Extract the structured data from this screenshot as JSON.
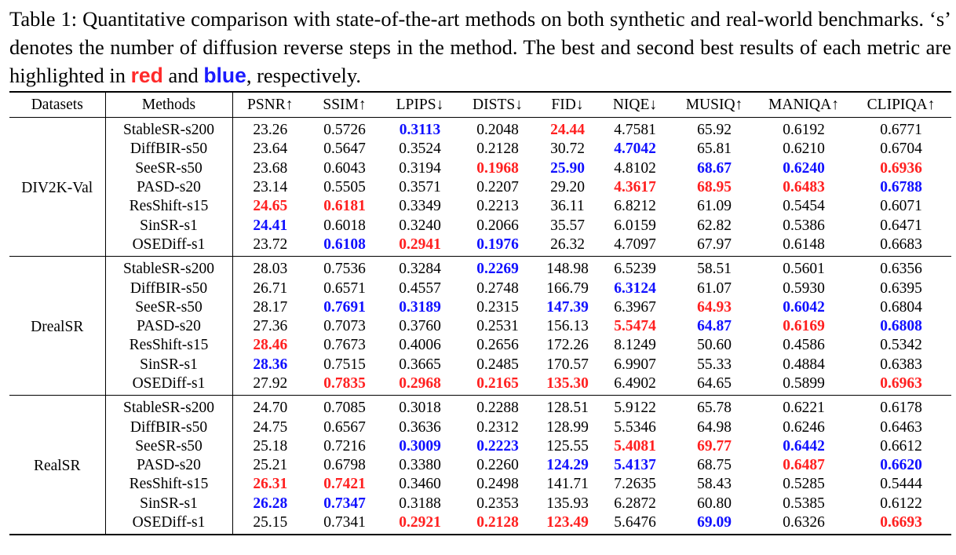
{
  "caption": {
    "prefix": "Table 1: Quantitative comparison with state-of-the-art methods on both synthetic and real-world benchmarks. ‘s’ denotes the number of diffusion reverse steps in the method. The best and second best results of each metric are highlighted in ",
    "red_word": "red",
    "middle": " and ",
    "blue_word": "blue",
    "suffix": ", respectively."
  },
  "colors": {
    "best": "#ff2020",
    "second": "#1010ff"
  },
  "table": {
    "headers": [
      "Datasets",
      "Methods",
      "PSNR↑",
      "SSIM↑",
      "LPIPS↓",
      "DISTS↓",
      "FID↓",
      "NIQE↓",
      "MUSIQ↑",
      "MANIQA↑",
      "CLIPIQA↑"
    ],
    "groups": [
      {
        "dataset": "DIV2K-Val",
        "rows": [
          {
            "method": "StableSR-s200",
            "values": [
              "23.26",
              "0.5726",
              "0.3113",
              "0.2048",
              "24.44",
              "4.7581",
              "65.92",
              "0.6192",
              "0.6771"
            ],
            "marks": [
              "",
              "",
              "second",
              "",
              "best",
              "",
              "",
              "",
              ""
            ]
          },
          {
            "method": "DiffBIR-s50",
            "values": [
              "23.64",
              "0.5647",
              "0.3524",
              "0.2128",
              "30.72",
              "4.7042",
              "65.81",
              "0.6210",
              "0.6704"
            ],
            "marks": [
              "",
              "",
              "",
              "",
              "",
              "second",
              "",
              "",
              ""
            ]
          },
          {
            "method": "SeeSR-s50",
            "values": [
              "23.68",
              "0.6043",
              "0.3194",
              "0.1968",
              "25.90",
              "4.8102",
              "68.67",
              "0.6240",
              "0.6936"
            ],
            "marks": [
              "",
              "",
              "",
              "best",
              "second",
              "",
              "second",
              "second",
              "best"
            ]
          },
          {
            "method": "PASD-s20",
            "values": [
              "23.14",
              "0.5505",
              "0.3571",
              "0.2207",
              "29.20",
              "4.3617",
              "68.95",
              "0.6483",
              "0.6788"
            ],
            "marks": [
              "",
              "",
              "",
              "",
              "",
              "best",
              "best",
              "best",
              "second"
            ]
          },
          {
            "method": "ResShift-s15",
            "values": [
              "24.65",
              "0.6181",
              "0.3349",
              "0.2213",
              "36.11",
              "6.8212",
              "61.09",
              "0.5454",
              "0.6071"
            ],
            "marks": [
              "best",
              "best",
              "",
              "",
              "",
              "",
              "",
              "",
              ""
            ]
          },
          {
            "method": "SinSR-s1",
            "values": [
              "24.41",
              "0.6018",
              "0.3240",
              "0.2066",
              "35.57",
              "6.0159",
              "62.82",
              "0.5386",
              "0.6471"
            ],
            "marks": [
              "second",
              "",
              "",
              "",
              "",
              "",
              "",
              "",
              ""
            ]
          },
          {
            "method": "OSEDiff-s1",
            "values": [
              "23.72",
              "0.6108",
              "0.2941",
              "0.1976",
              "26.32",
              "4.7097",
              "67.97",
              "0.6148",
              "0.6683"
            ],
            "marks": [
              "",
              "second",
              "best",
              "second",
              "",
              "",
              "",
              "",
              ""
            ]
          }
        ]
      },
      {
        "dataset": "DrealSR",
        "rows": [
          {
            "method": "StableSR-s200",
            "values": [
              "28.03",
              "0.7536",
              "0.3284",
              "0.2269",
              "148.98",
              "6.5239",
              "58.51",
              "0.5601",
              "0.6356"
            ],
            "marks": [
              "",
              "",
              "",
              "second",
              "",
              "",
              "",
              "",
              ""
            ]
          },
          {
            "method": "DiffBIR-s50",
            "values": [
              "26.71",
              "0.6571",
              "0.4557",
              "0.2748",
              "166.79",
              "6.3124",
              "61.07",
              "0.5930",
              "0.6395"
            ],
            "marks": [
              "",
              "",
              "",
              "",
              "",
              "second",
              "",
              "",
              ""
            ]
          },
          {
            "method": "SeeSR-s50",
            "values": [
              "28.17",
              "0.7691",
              "0.3189",
              "0.2315",
              "147.39",
              "6.3967",
              "64.93",
              "0.6042",
              "0.6804"
            ],
            "marks": [
              "",
              "second",
              "second",
              "",
              "second",
              "",
              "best",
              "second",
              ""
            ]
          },
          {
            "method": "PASD-s20",
            "values": [
              "27.36",
              "0.7073",
              "0.3760",
              "0.2531",
              "156.13",
              "5.5474",
              "64.87",
              "0.6169",
              "0.6808"
            ],
            "marks": [
              "",
              "",
              "",
              "",
              "",
              "best",
              "second",
              "best",
              "second"
            ]
          },
          {
            "method": "ResShift-s15",
            "values": [
              "28.46",
              "0.7673",
              "0.4006",
              "0.2656",
              "172.26",
              "8.1249",
              "50.60",
              "0.4586",
              "0.5342"
            ],
            "marks": [
              "best",
              "",
              "",
              "",
              "",
              "",
              "",
              "",
              ""
            ]
          },
          {
            "method": "SinSR-s1",
            "values": [
              "28.36",
              "0.7515",
              "0.3665",
              "0.2485",
              "170.57",
              "6.9907",
              "55.33",
              "0.4884",
              "0.6383"
            ],
            "marks": [
              "second",
              "",
              "",
              "",
              "",
              "",
              "",
              "",
              ""
            ]
          },
          {
            "method": "OSEDiff-s1",
            "values": [
              "27.92",
              "0.7835",
              "0.2968",
              "0.2165",
              "135.30",
              "6.4902",
              "64.65",
              "0.5899",
              "0.6963"
            ],
            "marks": [
              "",
              "best",
              "best",
              "best",
              "best",
              "",
              "",
              "",
              "best"
            ]
          }
        ]
      },
      {
        "dataset": "RealSR",
        "rows": [
          {
            "method": "StableSR-s200",
            "values": [
              "24.70",
              "0.7085",
              "0.3018",
              "0.2288",
              "128.51",
              "5.9122",
              "65.78",
              "0.6221",
              "0.6178"
            ],
            "marks": [
              "",
              "",
              "",
              "",
              "",
              "",
              "",
              "",
              ""
            ]
          },
          {
            "method": "DiffBIR-s50",
            "values": [
              "24.75",
              "0.6567",
              "0.3636",
              "0.2312",
              "128.99",
              "5.5346",
              "64.98",
              "0.6246",
              "0.6463"
            ],
            "marks": [
              "",
              "",
              "",
              "",
              "",
              "",
              "",
              "",
              ""
            ]
          },
          {
            "method": "SeeSR-s50",
            "values": [
              "25.18",
              "0.7216",
              "0.3009",
              "0.2223",
              "125.55",
              "5.4081",
              "69.77",
              "0.6442",
              "0.6612"
            ],
            "marks": [
              "",
              "",
              "second",
              "second",
              "",
              "best",
              "best",
              "second",
              ""
            ]
          },
          {
            "method": "PASD-s20",
            "values": [
              "25.21",
              "0.6798",
              "0.3380",
              "0.2260",
              "124.29",
              "5.4137",
              "68.75",
              "0.6487",
              "0.6620"
            ],
            "marks": [
              "",
              "",
              "",
              "",
              "second",
              "second",
              "",
              "best",
              "second"
            ]
          },
          {
            "method": "ResShift-s15",
            "values": [
              "26.31",
              "0.7421",
              "0.3460",
              "0.2498",
              "141.71",
              "7.2635",
              "58.43",
              "0.5285",
              "0.5444"
            ],
            "marks": [
              "best",
              "best",
              "",
              "",
              "",
              "",
              "",
              "",
              ""
            ]
          },
          {
            "method": "SinSR-s1",
            "values": [
              "26.28",
              "0.7347",
              "0.3188",
              "0.2353",
              "135.93",
              "6.2872",
              "60.80",
              "0.5385",
              "0.6122"
            ],
            "marks": [
              "second",
              "second",
              "",
              "",
              "",
              "",
              "",
              "",
              ""
            ]
          },
          {
            "method": "OSEDiff-s1",
            "values": [
              "25.15",
              "0.7341",
              "0.2921",
              "0.2128",
              "123.49",
              "5.6476",
              "69.09",
              "0.6326",
              "0.6693"
            ],
            "marks": [
              "",
              "",
              "best",
              "best",
              "best",
              "",
              "second",
              "",
              "best"
            ]
          }
        ]
      }
    ]
  }
}
